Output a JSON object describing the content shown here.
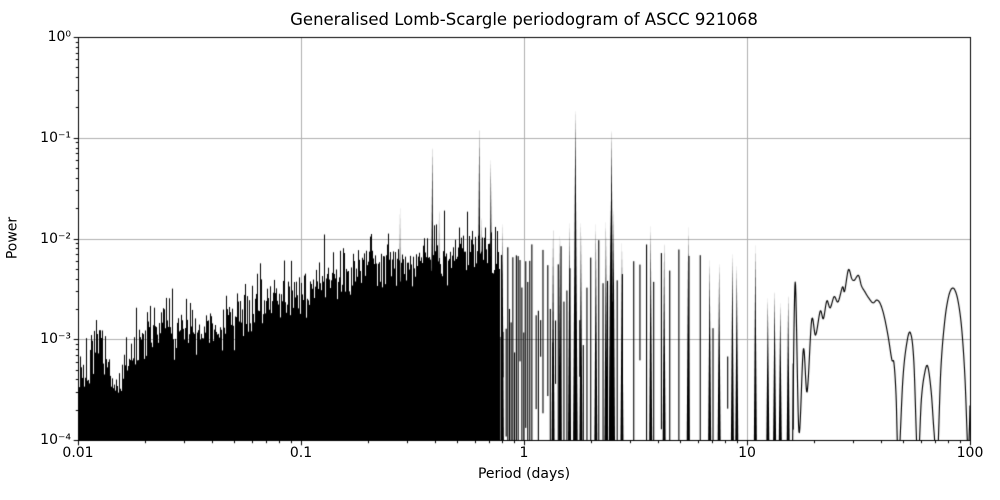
{
  "chart_data": {
    "type": "line",
    "title": "Generalised Lomb-Scargle periodogram of ASCC 921068",
    "xlabel": "Period (days)",
    "ylabel": "Power",
    "x_scale": "log",
    "y_scale": "log",
    "x_range": [
      0.01,
      100
    ],
    "y_range": [
      0.0001,
      1
    ],
    "grid": true,
    "legend": false,
    "line_color": "#000000",
    "grid_color": "#b0b0b0",
    "background_color": "#ffffff",
    "x_ticks": {
      "values": [
        0.01,
        0.1,
        1,
        10,
        100
      ],
      "labels": [
        "0.01",
        "0.1",
        "1",
        "10",
        "100"
      ]
    },
    "y_ticks": {
      "values": [
        1,
        0.1,
        0.01,
        0.001,
        0.0001
      ],
      "labels": [
        "10⁰",
        "10⁻¹",
        "10⁻²",
        "10⁻³",
        "10⁻⁴"
      ]
    },
    "main_peaks": [
      [
        0.278,
        0.0207
      ],
      [
        0.388,
        0.085
      ],
      [
        0.416,
        0.0203
      ],
      [
        0.63,
        0.129
      ],
      [
        0.646,
        0.0172
      ],
      [
        0.71,
        0.062
      ],
      [
        0.8,
        0.0148
      ],
      [
        1.35,
        0.0133
      ],
      [
        1.45,
        0.011
      ],
      [
        1.6,
        0.0148
      ],
      [
        1.7,
        0.195
      ],
      [
        1.8,
        0.015
      ],
      [
        2.1,
        0.014
      ],
      [
        2.33,
        0.015
      ],
      [
        2.44,
        0.025
      ],
      [
        2.47,
        0.124
      ],
      [
        2.52,
        0.02
      ],
      [
        2.75,
        0.009
      ],
      [
        3.7,
        0.0137
      ],
      [
        4.25,
        0.0095
      ],
      [
        5.45,
        0.013
      ],
      [
        6.8,
        0.0062
      ],
      [
        7.5,
        0.0058
      ],
      [
        8.6,
        0.0073
      ],
      [
        9.0,
        0.0055
      ],
      [
        10.9,
        0.0086
      ],
      [
        12.4,
        0.0026
      ],
      [
        13.3,
        0.0031
      ],
      [
        14.1,
        0.0023
      ],
      [
        15.3,
        0.0028
      ]
    ],
    "noise_envelope_top": [
      [
        0.01,
        0.0004
      ],
      [
        0.0118,
        0.00075
      ],
      [
        0.0125,
        0.0009
      ],
      [
        0.0135,
        0.0005
      ],
      [
        0.0145,
        0.00036
      ],
      [
        0.016,
        0.00048
      ],
      [
        0.018,
        0.00068
      ],
      [
        0.02,
        0.001
      ],
      [
        0.023,
        0.00155
      ],
      [
        0.026,
        0.0014
      ],
      [
        0.028,
        0.00115
      ],
      [
        0.031,
        0.0015
      ],
      [
        0.035,
        0.00135
      ],
      [
        0.04,
        0.00125
      ],
      [
        0.046,
        0.00135
      ],
      [
        0.055,
        0.0019
      ],
      [
        0.065,
        0.0023
      ],
      [
        0.08,
        0.0027
      ],
      [
        0.1,
        0.003
      ],
      [
        0.13,
        0.0038
      ],
      [
        0.16,
        0.0048
      ],
      [
        0.2,
        0.006
      ],
      [
        0.26,
        0.0058
      ],
      [
        0.32,
        0.0065
      ],
      [
        0.4,
        0.0075
      ],
      [
        0.5,
        0.0068
      ],
      [
        0.62,
        0.0075
      ],
      [
        0.78,
        0.008
      ]
    ],
    "spike_envelope": [
      [
        0.78,
        0.0075
      ],
      [
        1.0,
        0.0065
      ],
      [
        1.3,
        0.008
      ],
      [
        1.7,
        0.0075
      ],
      [
        2.2,
        0.007
      ],
      [
        3.0,
        0.0065
      ],
      [
        4.0,
        0.0075
      ],
      [
        5.0,
        0.006
      ],
      [
        6.5,
        0.0055
      ],
      [
        8.0,
        0.005
      ],
      [
        10.0,
        0.0048
      ],
      [
        11.5,
        0.0028
      ],
      [
        13.0,
        0.002
      ],
      [
        14.5,
        0.002
      ],
      [
        16.2,
        0.0022
      ]
    ],
    "smooth_tail": [
      [
        16.0,
        8e-05
      ],
      [
        16.45,
        0.0037
      ],
      [
        17.1,
        0.00012
      ],
      [
        17.9,
        0.0008
      ],
      [
        18.6,
        0.0003
      ],
      [
        19.5,
        0.00155
      ],
      [
        20.3,
        0.0011
      ],
      [
        21.3,
        0.0019
      ],
      [
        22.0,
        0.0016
      ],
      [
        22.8,
        0.0024
      ],
      [
        23.6,
        0.00205
      ],
      [
        24.6,
        0.00265
      ],
      [
        25.6,
        0.00235
      ],
      [
        26.8,
        0.0033
      ],
      [
        27.4,
        0.003
      ],
      [
        28.5,
        0.0049
      ],
      [
        29.5,
        0.004
      ],
      [
        30.3,
        0.00385
      ],
      [
        31.6,
        0.0043
      ],
      [
        32.6,
        0.0034
      ],
      [
        33.8,
        0.00295
      ],
      [
        35.0,
        0.0026
      ],
      [
        36.7,
        0.0023
      ],
      [
        38.2,
        0.00245
      ],
      [
        39.6,
        0.00225
      ],
      [
        41.2,
        0.0017
      ],
      [
        43.0,
        0.00105
      ],
      [
        44.6,
        0.00063
      ],
      [
        45.6,
        0.00058
      ],
      [
        46.6,
        0.00028
      ],
      [
        47.8,
        6e-05
      ],
      [
        50.0,
        0.0004
      ],
      [
        52.0,
        0.0009
      ],
      [
        54.0,
        0.00116
      ],
      [
        56.0,
        0.0006
      ],
      [
        58.3,
        6e-05
      ],
      [
        60.5,
        0.00025
      ],
      [
        62.5,
        0.00045
      ],
      [
        64.6,
        0.00054
      ],
      [
        67.0,
        0.0003
      ],
      [
        69.0,
        0.00012
      ],
      [
        71.3,
        6e-05
      ],
      [
        74.0,
        0.0005
      ],
      [
        77.0,
        0.0015
      ],
      [
        80.0,
        0.0026
      ],
      [
        83.0,
        0.0032
      ],
      [
        86.0,
        0.003
      ],
      [
        89.0,
        0.0022
      ],
      [
        92.0,
        0.0012
      ],
      [
        95.0,
        0.0004
      ],
      [
        98.0,
        7e-05
      ],
      [
        99.3,
        0.00012
      ],
      [
        100.0,
        0.00022
      ]
    ],
    "render_params": {
      "seed": 20,
      "dense_max_period": 0.78,
      "spike_df": 0.02,
      "spike_min_frequency": 0.0617,
      "gap_probability": 0.1
    }
  }
}
